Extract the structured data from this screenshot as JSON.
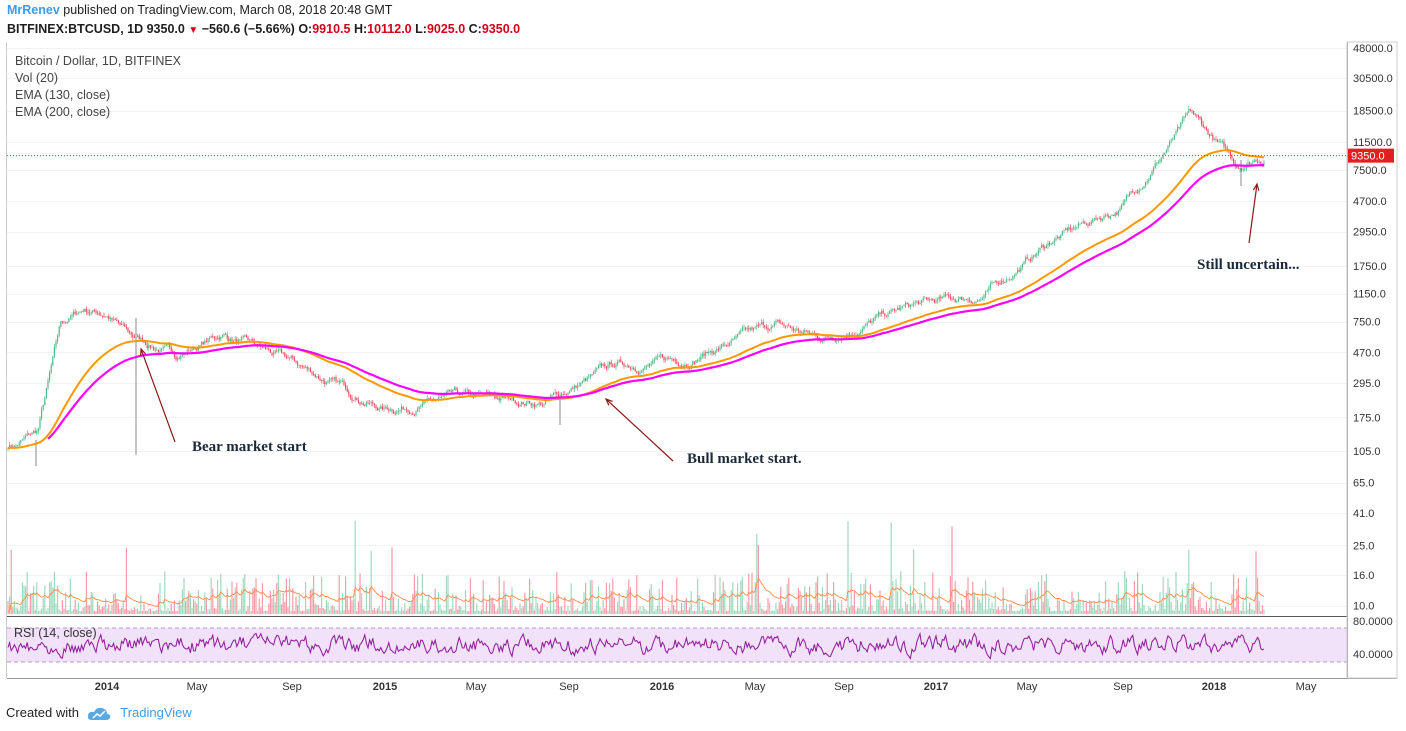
{
  "header": {
    "author": "MrRenev",
    "published_text": "published on TradingView.com, March 08, 2018 20:48 GMT",
    "symbol": "BITFINEX:BTCUSD, 1D",
    "last": "9350.0",
    "change": "−560.6 (−5.66%)",
    "o_label": "O:",
    "o_value": "9910.5",
    "h_label": "H:",
    "h_value": "10112.0",
    "l_label": "L:",
    "l_value": "9025.0",
    "c_label": "C:",
    "c_value": "9350.0"
  },
  "legend": {
    "title": "Bitcoin / Dollar, 1D, BITFINEX",
    "vol": "Vol (20)",
    "ema130": "EMA (130, close)",
    "ema200": "EMA (200, close)",
    "rsi": "RSI (14, close)"
  },
  "annotations": {
    "bear": "Bear market start",
    "bull": "Bull market start.",
    "uncertain": "Still uncertain..."
  },
  "footer": {
    "created_with": "Created with",
    "brand": "TradingView"
  },
  "colors": {
    "up": "#53b987",
    "down": "#eb4d5c",
    "ema130": "#ff9800",
    "ema200": "#ff00ff",
    "rsi": "#8e1599",
    "rsi_band": "#f1e1f9",
    "price_line": "#e03030",
    "arrow": "#8b1a1a"
  },
  "chart_data": {
    "type": "candlestick",
    "title": "Bitcoin / Dollar, 1D, BITFINEX",
    "price_scale": "log",
    "last_price": "9350.0",
    "price_ticks": [
      "48000.0",
      "30500.0",
      "18500.0",
      "11500.0",
      "7500.0",
      "4700.0",
      "2950.0",
      "1750.0",
      "1150.0",
      "750.0",
      "470.0",
      "295.0",
      "175.0",
      "105.0",
      "65.0",
      "41.0",
      "25.0",
      "16.0",
      "10.0"
    ],
    "rsi_ticks": [
      "80.0000",
      "40.0000"
    ],
    "x_ticks": [
      "2014",
      "May",
      "Sep",
      "2015",
      "May",
      "Sep",
      "2016",
      "May",
      "Sep",
      "2017",
      "May",
      "Sep",
      "2018",
      "May"
    ],
    "price_path": [
      {
        "t": "2013-09",
        "price": 115
      },
      {
        "t": "2013-10",
        "price": 140
      },
      {
        "t": "2013-11",
        "price": 700
      },
      {
        "t": "2013-12",
        "price": 900
      },
      {
        "t": "2014-01",
        "price": 850
      },
      {
        "t": "2014-02",
        "price": 600
      },
      {
        "t": "2014-04",
        "price": 450
      },
      {
        "t": "2014-06",
        "price": 620
      },
      {
        "t": "2014-09",
        "price": 400
      },
      {
        "t": "2015-01",
        "price": 200
      },
      {
        "t": "2015-04",
        "price": 230
      },
      {
        "t": "2015-08",
        "price": 220
      },
      {
        "t": "2015-11",
        "price": 380
      },
      {
        "t": "2016-02",
        "price": 420
      },
      {
        "t": "2016-06",
        "price": 700
      },
      {
        "t": "2016-08",
        "price": 580
      },
      {
        "t": "2016-12",
        "price": 950
      },
      {
        "t": "2017-03",
        "price": 1100
      },
      {
        "t": "2017-06",
        "price": 2600
      },
      {
        "t": "2017-09",
        "price": 4300
      },
      {
        "t": "2017-12",
        "price": 17000
      },
      {
        "t": "2018-02",
        "price": 8000
      },
      {
        "t": "2018-03",
        "price": 9350
      }
    ],
    "series": [
      {
        "name": "EMA (130, close)"
      },
      {
        "name": "EMA (200, close)"
      },
      {
        "name": "Vol (20)"
      },
      {
        "name": "RSI (14, close)"
      }
    ]
  }
}
